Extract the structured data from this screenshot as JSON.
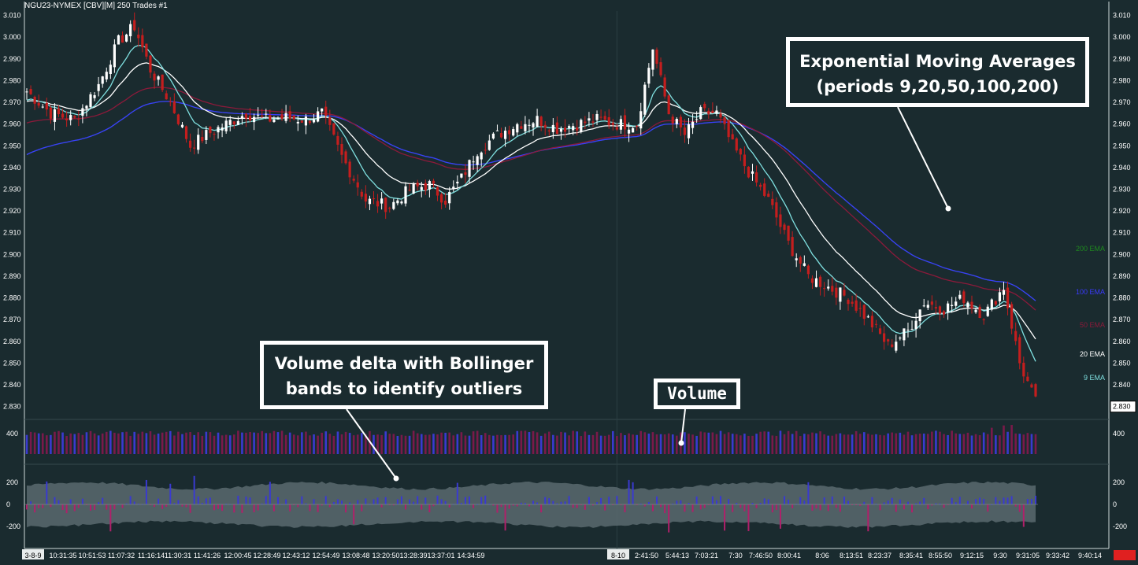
{
  "header": {
    "title": "NGU23-NYMEX [CBV][M]  250 Trades  #1"
  },
  "colors": {
    "background": "#1a2b2f",
    "up_candle": "#ffffff",
    "down_candle": "#c41e1e",
    "ema9": "#7fe0e0",
    "ema20": "#ffffff",
    "ema50": "#8b1a3a",
    "ema100": "#3a3aff",
    "ema200": "#1f8a1f",
    "volume_a": "#7a1a4a",
    "volume_b": "#3a3ad0",
    "delta_pos": "#3a3ad0",
    "delta_neg": "#b0206a",
    "bollinger": "#5b6a6e"
  },
  "annotations": {
    "ema": {
      "line1": "Exponential Moving Averages",
      "line2": "(periods 9,20,50,100,200)"
    },
    "delta": {
      "line1": "Volume delta with Bollinger",
      "line2": "bands to identify outliers"
    },
    "volume": {
      "label": "Volume"
    }
  },
  "chart_data": {
    "type": "candlestick",
    "price_axis": {
      "ylim": [
        2.827,
        3.012
      ],
      "ticks": [
        "3.010",
        "3.000",
        "2.990",
        "2.980",
        "2.970",
        "2.960",
        "2.950",
        "2.940",
        "2.930",
        "2.920",
        "2.910",
        "2.900",
        "2.890",
        "2.880",
        "2.870",
        "2.860",
        "2.850",
        "2.840",
        "2.830"
      ],
      "last_price": "2.830"
    },
    "ema_labels": [
      "200 EMA",
      "100 EMA",
      "50 EMA",
      "20 EMA",
      "9 EMA"
    ],
    "volume_axis": {
      "ticks": [
        "400"
      ]
    },
    "delta_axis": {
      "ticks": [
        "200",
        "0",
        "-200"
      ]
    },
    "x_axis_labels": [
      "3-8-9",
      "10:31:35",
      "10:51:53",
      "11:07:32",
      "11:16:14",
      "11:30:31",
      "11:41:26",
      "12:00:45",
      "12:28:49",
      "12:43:12",
      "12:54:49",
      "13:08:48",
      "13:20:50",
      "13:28:39",
      "13:37:01",
      "14:34:59",
      "8-10",
      "2:41:50",
      "5:44:13",
      "7:03:21",
      "7:30",
      "7:46:50",
      "8:00:41",
      "8:06",
      "8:13:51",
      "8:23:37",
      "8:35:41",
      "8:55:50",
      "9:12:15",
      "9:30",
      "9:31:05",
      "9:33:42",
      "9:40:14"
    ],
    "close_path": [
      [
        0,
        2.975
      ],
      [
        6,
        2.965
      ],
      [
        12,
        2.962
      ],
      [
        18,
        2.978
      ],
      [
        23,
        2.998
      ],
      [
        27,
        3.005
      ],
      [
        31,
        2.985
      ],
      [
        36,
        2.97
      ],
      [
        41,
        2.95
      ],
      [
        45,
        2.955
      ],
      [
        50,
        2.96
      ],
      [
        55,
        2.965
      ],
      [
        60,
        2.962
      ],
      [
        65,
        2.963
      ],
      [
        70,
        2.962
      ],
      [
        74,
        2.965
      ],
      [
        79,
        2.945
      ],
      [
        85,
        2.925
      ],
      [
        91,
        2.922
      ],
      [
        96,
        2.93
      ],
      [
        101,
        2.932
      ],
      [
        105,
        2.925
      ],
      [
        109,
        2.935
      ],
      [
        113,
        2.948
      ],
      [
        118,
        2.955
      ],
      [
        123,
        2.96
      ],
      [
        128,
        2.962
      ],
      [
        133,
        2.958
      ],
      [
        138,
        2.96
      ],
      [
        143,
        2.962
      ],
      [
        148,
        2.96
      ],
      [
        153,
        2.96
      ],
      [
        157,
        2.995
      ],
      [
        161,
        2.965
      ],
      [
        165,
        2.955
      ],
      [
        169,
        2.965
      ],
      [
        173,
        2.965
      ],
      [
        177,
        2.95
      ],
      [
        181,
        2.938
      ],
      [
        186,
        2.925
      ],
      [
        191,
        2.905
      ],
      [
        196,
        2.89
      ],
      [
        201,
        2.885
      ],
      [
        206,
        2.88
      ],
      [
        211,
        2.87
      ],
      [
        216,
        2.858
      ],
      [
        221,
        2.865
      ],
      [
        225,
        2.878
      ],
      [
        230,
        2.875
      ],
      [
        235,
        2.88
      ],
      [
        240,
        2.872
      ],
      [
        245,
        2.885
      ],
      [
        249,
        2.85
      ],
      [
        253,
        2.832
      ]
    ],
    "bar_count": 254,
    "session_break_index": 148,
    "stats": {
      "volume_typical": 400,
      "delta_band_upper": 200,
      "delta_band_lower": -200
    }
  }
}
